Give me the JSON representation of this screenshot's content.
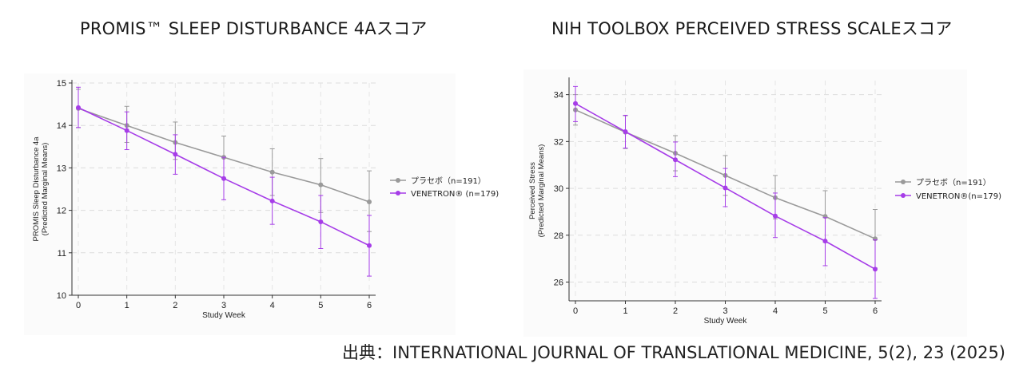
{
  "charts": {
    "left_title": "PROMIS™ SLEEP DISTURBANCE 4Aスコア",
    "right_title": "NIH TOOLBOX PERCEIVED STRESS SCALEスコア"
  },
  "source": "出典：INTERNATIONAL JOURNAL OF TRANSLATIONAL MEDICINE, 5(2), 23 (2025)",
  "colors": {
    "placebo": "#9a9a9a",
    "venetron": "#a63de8"
  },
  "chart_data": [
    {
      "type": "line",
      "title": "PROMIS™ SLEEP DISTURBANCE 4Aスコア",
      "xlabel": "Study Week",
      "ylabel": "PROMIS Sleep Disturbance 4a",
      "ylabel2": "(Predicted Marginal Means)",
      "x": [
        0,
        1,
        2,
        3,
        4,
        5,
        6
      ],
      "xlim": [
        0,
        6
      ],
      "ylim": [
        10,
        15
      ],
      "yticks": [
        10,
        11,
        12,
        13,
        14,
        15
      ],
      "grid": true,
      "legend_position": "right",
      "series": [
        {
          "name": "プラセボ（n=191）",
          "color": "#9a9a9a",
          "values": [
            14.4,
            14.0,
            13.6,
            13.25,
            12.9,
            12.6,
            12.2
          ],
          "lower": [
            13.95,
            13.6,
            13.2,
            12.75,
            12.35,
            11.95,
            11.5
          ],
          "upper": [
            14.85,
            14.45,
            14.08,
            13.75,
            13.45,
            13.22,
            12.93
          ]
        },
        {
          "name": "VENETRON® (n=179)",
          "color": "#a63de8",
          "values": [
            14.42,
            13.88,
            13.32,
            12.75,
            12.22,
            11.73,
            11.17
          ],
          "lower": [
            13.95,
            13.43,
            12.85,
            12.25,
            11.67,
            11.1,
            10.45
          ],
          "upper": [
            14.9,
            14.32,
            13.78,
            13.25,
            12.78,
            12.35,
            11.88
          ]
        }
      ]
    },
    {
      "type": "line",
      "title": "NIH TOOLBOX PERCEIVED STRESS SCALEスコア",
      "xlabel": "Study Week",
      "ylabel": "Perceived Stress",
      "ylabel2": "(Predicted Marginal Means)",
      "x": [
        0,
        1,
        2,
        3,
        4,
        5,
        6
      ],
      "xlim": [
        0,
        6
      ],
      "ylim": [
        25.2,
        34.6
      ],
      "yticks": [
        26,
        28,
        30,
        32,
        34
      ],
      "grid": true,
      "legend_position": "right",
      "series": [
        {
          "name": "プラセボ（n=191）",
          "color": "#9a9a9a",
          "values": [
            33.35,
            32.4,
            31.5,
            30.55,
            29.6,
            28.8,
            27.85
          ],
          "lower": [
            32.7,
            31.7,
            30.75,
            29.7,
            28.7,
            27.7,
            26.6
          ],
          "upper": [
            34.0,
            33.1,
            32.25,
            31.4,
            30.55,
            29.9,
            29.1
          ]
        },
        {
          "name": "VENETRON®(n=179)",
          "color": "#a63de8",
          "values": [
            33.62,
            32.42,
            31.22,
            30.02,
            28.82,
            27.75,
            26.55
          ],
          "lower": [
            32.85,
            31.72,
            30.5,
            29.22,
            27.9,
            26.7,
            25.3
          ],
          "upper": [
            34.35,
            33.12,
            31.98,
            30.85,
            29.8,
            28.75,
            27.8
          ]
        }
      ]
    }
  ]
}
